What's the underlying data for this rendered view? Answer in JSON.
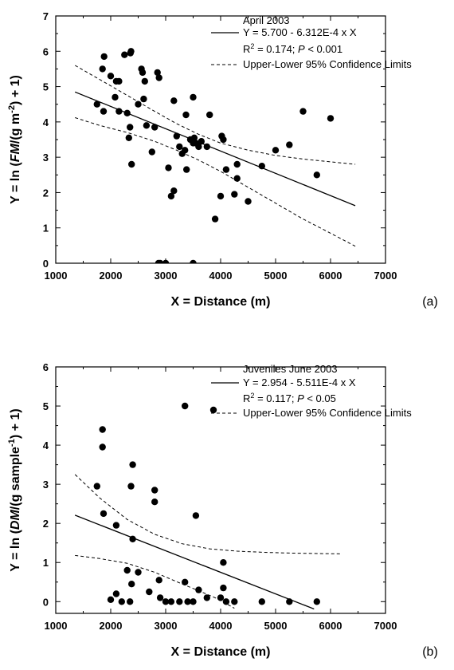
{
  "chart_data": [
    {
      "type": "scatter",
      "panel_label": "(a)",
      "title": "April 2003",
      "xlabel": "X = Distance (m)",
      "ylabel_parts": [
        {
          "t": "Y = ln ("
        },
        {
          "t": "FM",
          "italic": true
        },
        {
          "t": "/(g m"
        },
        {
          "t": "-2",
          "sup": true
        },
        {
          "t": ") + 1)"
        }
      ],
      "xlim": [
        1000,
        7000
      ],
      "ylim": [
        0,
        7
      ],
      "xticks": [
        "1000",
        "2000",
        "3000",
        "4000",
        "5000",
        "6000",
        "7000"
      ],
      "yticks": [
        "0",
        "1",
        "2",
        "3",
        "4",
        "5",
        "6",
        "7"
      ],
      "legend": {
        "fit_label": "Y = 5.700 - 6.312E-4 x X",
        "stats": [
          {
            "t": "R"
          },
          {
            "t": "2",
            "sup": true
          },
          {
            "t": " = 0.174; "
          },
          {
            "t": "P",
            "italic": true
          },
          {
            "t": " < 0.001"
          }
        ],
        "ci_label": "Upper-Lower 95% Confidence Limits"
      },
      "fit": {
        "x": [
          1350,
          6450
        ],
        "y": [
          4.848,
          1.629
        ]
      },
      "ci_upper": {
        "x": [
          1350,
          1800,
          2300,
          2800,
          3200,
          3600,
          4000,
          4500,
          5000,
          5500,
          6000,
          6450
        ],
        "y": [
          5.6,
          5.2,
          4.75,
          4.3,
          3.95,
          3.65,
          3.4,
          3.2,
          3.05,
          2.95,
          2.87,
          2.8
        ]
      },
      "ci_lower": {
        "x": [
          1350,
          1800,
          2300,
          2800,
          3200,
          3600,
          4000,
          4500,
          5000,
          5500,
          6000,
          6450
        ],
        "y": [
          4.12,
          3.9,
          3.7,
          3.45,
          3.2,
          2.92,
          2.6,
          2.15,
          1.7,
          1.25,
          0.85,
          0.48
        ]
      },
      "points": {
        "x": [
          1750,
          1850,
          1870,
          1880,
          2000,
          2080,
          2100,
          2150,
          2150,
          2250,
          2300,
          2330,
          2350,
          2360,
          2370,
          2380,
          2500,
          2560,
          2580,
          2600,
          2620,
          2650,
          2750,
          2800,
          2850,
          2870,
          2880,
          2900,
          3000,
          3050,
          3100,
          3150,
          3150,
          3200,
          3250,
          3300,
          3350,
          3370,
          3380,
          3450,
          3500,
          3500,
          3500,
          3520,
          3550,
          3600,
          3650,
          3750,
          3800,
          3900,
          4000,
          4020,
          4050,
          4100,
          4250,
          4300,
          4300,
          4500,
          4750,
          5000,
          5250,
          5500,
          5750,
          6000
        ],
        "y": [
          4.5,
          5.5,
          4.3,
          5.85,
          5.3,
          4.7,
          5.15,
          4.3,
          5.15,
          5.9,
          4.25,
          3.55,
          3.85,
          5.95,
          6.0,
          2.8,
          4.5,
          5.5,
          5.4,
          4.65,
          5.15,
          3.9,
          3.15,
          3.85,
          5.4,
          0.0,
          5.25,
          0.0,
          0.0,
          2.7,
          1.9,
          2.05,
          4.6,
          3.6,
          3.3,
          3.1,
          3.2,
          4.2,
          2.65,
          3.5,
          3.4,
          4.7,
          0.0,
          3.55,
          3.4,
          3.3,
          3.45,
          3.3,
          4.2,
          1.25,
          1.9,
          3.6,
          3.5,
          2.65,
          1.95,
          2.4,
          2.8,
          1.75,
          2.75,
          3.2,
          3.35,
          4.3,
          2.5,
          4.1
        ]
      }
    },
    {
      "type": "scatter",
      "panel_label": "(b)",
      "title": "Juveniles June 2003",
      "xlabel": "X = Distance (m)",
      "ylabel_parts": [
        {
          "t": "Y = ln ("
        },
        {
          "t": "DM",
          "italic": true
        },
        {
          "t": "/(g sample"
        },
        {
          "t": "-1",
          "sup": true
        },
        {
          "t": ") + 1)"
        }
      ],
      "xlim": [
        1000,
        7000
      ],
      "ylim": [
        -0.3,
        6
      ],
      "xticks": [
        "1000",
        "2000",
        "3000",
        "4000",
        "5000",
        "6000",
        "7000"
      ],
      "yticks": [
        "0",
        "1",
        "2",
        "3",
        "4",
        "5",
        "6"
      ],
      "legend": {
        "fit_label": "Y = 2.954 - 5.511E-4 x X",
        "stats": [
          {
            "t": "R"
          },
          {
            "t": "2",
            "sup": true
          },
          {
            "t": " = 0.117; "
          },
          {
            "t": "P",
            "italic": true
          },
          {
            "t": " < 0.05"
          }
        ],
        "ci_label": "Upper-Lower 95% Confidence Limits"
      },
      "fit": {
        "x": [
          1350,
          5700
        ],
        "y": [
          2.21,
          -0.187
        ]
      },
      "ci_upper": {
        "x": [
          1350,
          1800,
          2300,
          2800,
          3300,
          3800,
          4300,
          4800,
          5300,
          5800,
          6200
        ],
        "y": [
          3.25,
          2.65,
          2.1,
          1.72,
          1.48,
          1.35,
          1.29,
          1.26,
          1.24,
          1.23,
          1.22
        ]
      },
      "ci_lower": {
        "x": [
          1350,
          1800,
          2300,
          2800,
          3300,
          3600,
          3900,
          4100,
          4250
        ],
        "y": [
          1.18,
          1.1,
          0.98,
          0.75,
          0.45,
          0.28,
          0.1,
          -0.05,
          -0.17
        ]
      },
      "points": {
        "x": [
          1750,
          1850,
          1850,
          1870,
          2000,
          2100,
          2100,
          2200,
          2300,
          2350,
          2370,
          2380,
          2400,
          2400,
          2500,
          2700,
          2800,
          2800,
          2880,
          2900,
          3000,
          3100,
          3250,
          3350,
          3350,
          3400,
          3500,
          3550,
          3600,
          3750,
          3870,
          4000,
          4050,
          4050,
          4100,
          4250,
          4750,
          5250,
          5750
        ],
        "y": [
          2.95,
          3.95,
          4.4,
          2.25,
          0.05,
          1.95,
          0.2,
          0.0,
          0.8,
          0.0,
          2.95,
          0.45,
          1.6,
          3.5,
          0.75,
          0.25,
          2.55,
          2.85,
          0.55,
          0.1,
          0.0,
          0.0,
          0.0,
          5.0,
          0.5,
          0.0,
          0.0,
          2.2,
          0.3,
          0.1,
          4.9,
          0.1,
          1.0,
          0.35,
          0.0,
          0.0,
          0.0,
          0.0,
          0.0
        ]
      }
    }
  ]
}
